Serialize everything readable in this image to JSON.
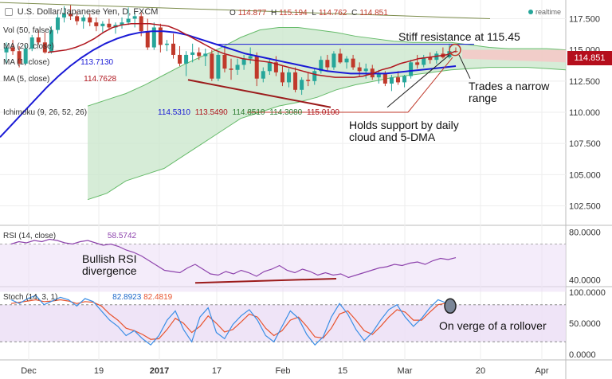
{
  "header": {
    "symbol": "U.S. Dollar/Japanese Yen, D, FXCM",
    "ohlc": {
      "o_label": "O",
      "o": "114.877",
      "h_label": "H",
      "h": "115.194",
      "l_label": "L",
      "l": "114.762",
      "c_label": "C",
      "c": "114.851"
    },
    "realtime": "realtime"
  },
  "legend": {
    "vol": "Vol (50, false)",
    "ma20": "MA (20, close)",
    "ma1": "MA (1, close)",
    "ma1_value": "113.7130",
    "ma5": "MA (5, close)",
    "ma5_value": "114.7628",
    "ichimoku": "Ichimoku (9, 26, 52, 26)",
    "ichimoku_values": [
      "114.5310",
      "113.5490",
      "114.8510",
      "114.3080",
      "115.0100"
    ]
  },
  "price_tag": "114.851",
  "annotations": {
    "resistance": "Stiff resistance at 115.45",
    "narrow": [
      "Trades a narrow",
      "range"
    ],
    "support": [
      "Holds support by daily",
      "cloud and 5-DMA"
    ],
    "rsi_div": [
      "Bullish RSI",
      "divergence"
    ],
    "rollover": "On verge of a rollover"
  },
  "rsi": {
    "label": "RSI (14, close)",
    "value": "58.5742"
  },
  "stoch": {
    "label": "Stoch (14, 3, 1)",
    "k": "82.8923",
    "d": "82.4819"
  },
  "colors": {
    "up": "#26a69a",
    "down": "#c0392b",
    "ma_red": "#b0171f",
    "ma_blue": "#1a1ad6",
    "cloud": "#c8e6c9",
    "cloud_red": "#f7c6c6",
    "rsi": "#8e44ad",
    "stoch_k": "#3a8ee6",
    "stoch_d": "#e8542f",
    "panel_fill": "#ecdff6"
  },
  "chart_data": [
    {
      "type": "candlestick",
      "title": "U.S. Dollar/Japanese Yen, D, FXCM",
      "x_ticks": [
        "Dec",
        "19",
        "2017",
        "17",
        "Feb",
        "15",
        "Mar",
        "20",
        "Apr"
      ],
      "y_ticks": [
        102.5,
        105.0,
        107.5,
        110.0,
        112.5,
        115.0,
        117.5
      ],
      "ylim": [
        101.0,
        119.0
      ],
      "candles": [
        [
          114.8,
          115.6,
          113.9,
          115.2
        ],
        [
          115.2,
          115.8,
          114.6,
          114.9
        ],
        [
          114.9,
          115.3,
          113.6,
          113.9
        ],
        [
          113.9,
          115.4,
          113.8,
          115.1
        ],
        [
          115.1,
          116.2,
          114.9,
          116.0
        ],
        [
          116.0,
          116.6,
          115.4,
          115.6
        ],
        [
          115.6,
          116.4,
          114.7,
          114.8
        ],
        [
          114.8,
          116.9,
          114.7,
          116.6
        ],
        [
          116.6,
          117.9,
          116.3,
          117.6
        ],
        [
          117.6,
          118.5,
          117.2,
          117.9
        ],
        [
          117.9,
          118.6,
          117.4,
          117.7
        ],
        [
          117.7,
          118.1,
          117.0,
          117.3
        ],
        [
          117.3,
          117.8,
          116.7,
          117.6
        ],
        [
          117.6,
          117.9,
          116.9,
          117.2
        ],
        [
          117.2,
          117.6,
          116.5,
          116.9
        ],
        [
          116.9,
          117.3,
          116.4,
          117.1
        ],
        [
          117.1,
          117.5,
          116.6,
          116.8
        ],
        [
          116.8,
          117.2,
          116.3,
          117.0
        ],
        [
          117.0,
          117.6,
          116.7,
          117.2
        ],
        [
          117.2,
          118.4,
          117.0,
          117.5
        ],
        [
          117.5,
          118.0,
          116.8,
          117.7
        ],
        [
          117.7,
          118.0,
          116.1,
          116.5
        ],
        [
          116.5,
          117.5,
          115.0,
          115.2
        ],
        [
          115.2,
          117.2,
          115.0,
          116.8
        ],
        [
          116.8,
          117.1,
          114.8,
          115.4
        ],
        [
          115.4,
          115.8,
          114.9,
          115.5
        ],
        [
          115.5,
          116.3,
          114.3,
          114.6
        ],
        [
          114.6,
          115.3,
          113.7,
          113.9
        ],
        [
          113.9,
          114.9,
          112.9,
          114.6
        ],
        [
          114.6,
          115.5,
          114.0,
          114.8
        ],
        [
          114.8,
          115.2,
          114.2,
          114.5
        ],
        [
          114.5,
          115.1,
          113.7,
          114.7
        ],
        [
          114.7,
          115.0,
          112.5,
          112.7
        ],
        [
          112.7,
          114.9,
          112.5,
          114.6
        ],
        [
          114.6,
          115.3,
          113.2,
          113.5
        ],
        [
          113.5,
          114.3,
          112.6,
          113.4
        ],
        [
          113.4,
          114.3,
          113.0,
          113.8
        ],
        [
          113.8,
          114.6,
          113.4,
          114.3
        ],
        [
          114.3,
          115.2,
          113.9,
          114.5
        ],
        [
          114.5,
          114.8,
          112.1,
          112.7
        ],
        [
          112.7,
          113.6,
          112.4,
          113.3
        ],
        [
          113.3,
          114.2,
          113.0,
          114.0
        ],
        [
          114.0,
          114.5,
          112.9,
          113.2
        ],
        [
          113.2,
          113.7,
          112.1,
          112.4
        ],
        [
          112.4,
          113.5,
          112.0,
          113.2
        ],
        [
          113.2,
          113.6,
          111.6,
          111.8
        ],
        [
          111.8,
          112.8,
          111.4,
          112.6
        ],
        [
          112.6,
          113.2,
          112.1,
          112.5
        ],
        [
          112.5,
          113.5,
          112.2,
          113.3
        ],
        [
          113.3,
          114.5,
          113.1,
          114.2
        ],
        [
          114.2,
          114.6,
          113.3,
          113.6
        ],
        [
          113.6,
          114.9,
          113.4,
          114.7
        ],
        [
          114.7,
          115.1,
          113.9,
          114.0
        ],
        [
          114.0,
          114.5,
          113.5,
          114.3
        ],
        [
          114.3,
          114.6,
          113.4,
          113.6
        ],
        [
          113.6,
          114.0,
          112.9,
          113.3
        ],
        [
          113.3,
          113.9,
          112.7,
          113.5
        ],
        [
          113.5,
          113.8,
          112.6,
          112.8
        ],
        [
          112.8,
          113.4,
          112.3,
          113.1
        ],
        [
          113.1,
          113.3,
          112.1,
          112.3
        ],
        [
          112.3,
          113.0,
          111.7,
          112.8
        ],
        [
          112.8,
          113.3,
          112.2,
          112.4
        ],
        [
          112.4,
          113.0,
          112.0,
          112.9
        ],
        [
          112.9,
          114.2,
          112.7,
          114.0
        ],
        [
          114.0,
          114.6,
          113.5,
          113.8
        ],
        [
          113.8,
          114.6,
          113.6,
          114.4
        ],
        [
          114.4,
          114.8,
          113.9,
          114.2
        ],
        [
          114.2,
          114.9,
          113.9,
          114.7
        ],
        [
          114.7,
          115.2,
          114.3,
          114.4
        ],
        [
          114.4,
          115.5,
          114.3,
          114.9
        ],
        [
          114.9,
          115.2,
          114.76,
          114.851
        ]
      ],
      "ma_5": [
        114.8,
        114.9,
        115.0,
        115.2,
        115.5,
        115.9,
        116.4,
        116.8,
        117.0,
        117.1,
        117.1,
        117.1,
        117.0,
        116.9,
        116.6,
        116.2,
        115.8,
        115.4,
        115.0,
        114.7,
        114.5,
        114.3,
        114.2,
        114.1,
        114.0,
        113.8,
        113.6,
        113.4,
        113.2,
        113.0,
        112.9,
        112.8,
        112.8,
        112.8,
        112.9,
        113.1,
        113.4,
        113.6,
        113.9,
        114.1,
        114.3,
        114.4,
        114.5,
        114.6,
        114.9
      ],
      "ma_20": [
        108.0,
        109.0,
        110.0,
        111.0,
        112.0,
        112.9,
        113.7,
        114.4,
        115.0,
        115.5,
        115.9,
        116.2,
        116.4,
        116.5,
        116.5,
        116.4,
        116.2,
        115.9,
        115.6,
        115.3,
        115.0,
        114.7,
        114.5,
        114.3,
        114.1,
        113.9,
        113.7,
        113.5,
        113.3,
        113.2,
        113.1,
        113.1,
        113.1,
        113.1,
        113.2,
        113.3,
        113.4,
        113.5,
        113.6,
        113.7
      ],
      "ichimoku_cloud_upper": [
        110.5,
        111.0,
        111.5,
        112.2,
        113.0,
        113.8,
        114.5,
        115.2,
        116.0,
        116.6,
        116.8,
        116.8,
        116.6,
        116.4,
        116.1,
        115.9,
        115.7,
        115.6,
        115.6,
        115.6,
        115.4,
        115.2,
        115.1,
        115.1,
        115.1,
        115.0
      ],
      "ichimoku_cloud_lower": [
        103.0,
        103.5,
        104.5,
        105.0,
        105.5,
        106.5,
        107.5,
        108.5,
        109.5,
        110.0,
        110.5,
        110.8,
        111.2,
        111.8,
        112.2,
        112.5,
        112.8,
        113.0,
        113.2,
        113.4,
        113.5,
        113.6,
        113.6,
        113.6,
        113.5,
        113.4
      ],
      "resistance_level": 115.45,
      "ichimoku_values": [
        114.531,
        113.549,
        114.851,
        114.308,
        115.01
      ],
      "ma_5_last": 114.7628,
      "ma_20_last": 113.713,
      "last_close": 114.851
    },
    {
      "type": "line",
      "title": "RSI (14, close)",
      "y_ticks": [
        40.0,
        80.0
      ],
      "ylim": [
        35,
        85
      ],
      "values": [
        70,
        72,
        71,
        73,
        72,
        74,
        73,
        71,
        70,
        72,
        73,
        71,
        69,
        70,
        68,
        65,
        63,
        60,
        56,
        52,
        48,
        47,
        46,
        50,
        53,
        49,
        45,
        44,
        47,
        45,
        48,
        46,
        43,
        47,
        49,
        52,
        48,
        46,
        49,
        47,
        44,
        46,
        44,
        45,
        42,
        44,
        46,
        48,
        50,
        51,
        53,
        52,
        54,
        55,
        53,
        56,
        58,
        57,
        58.57
      ],
      "last_value": 58.5742
    },
    {
      "type": "line",
      "title": "Stoch (14, 3, 1)",
      "y_ticks": [
        0.0,
        50.0,
        100.0
      ],
      "ylim": [
        -8,
        108
      ],
      "series": [
        {
          "values": [
            88,
            82,
            90,
            95,
            80,
            86,
            92,
            88,
            78,
            90,
            85,
            70,
            55,
            45,
            30,
            38,
            25,
            15,
            30,
            55,
            70,
            40,
            20,
            60,
            75,
            35,
            25,
            48,
            62,
            72,
            55,
            30,
            20,
            45,
            70,
            58,
            32,
            15,
            28,
            60,
            82,
            65,
            40,
            22,
            35,
            55,
            72,
            80,
            60,
            45,
            58,
            75,
            88,
            82.89
          ]
        },
        {
          "values": [
            82,
            84,
            86,
            88,
            85,
            86,
            88,
            86,
            82,
            85,
            84,
            78,
            65,
            55,
            42,
            38,
            32,
            24,
            25,
            40,
            58,
            50,
            35,
            45,
            62,
            50,
            36,
            40,
            52,
            65,
            60,
            42,
            30,
            38,
            55,
            60,
            45,
            28,
            26,
            42,
            65,
            70,
            55,
            38,
            32,
            45,
            60,
            72,
            68,
            55,
            55,
            68,
            80,
            82.48
          ]
        }
      ],
      "k_last": 82.8923,
      "d_last": 82.4819
    }
  ]
}
